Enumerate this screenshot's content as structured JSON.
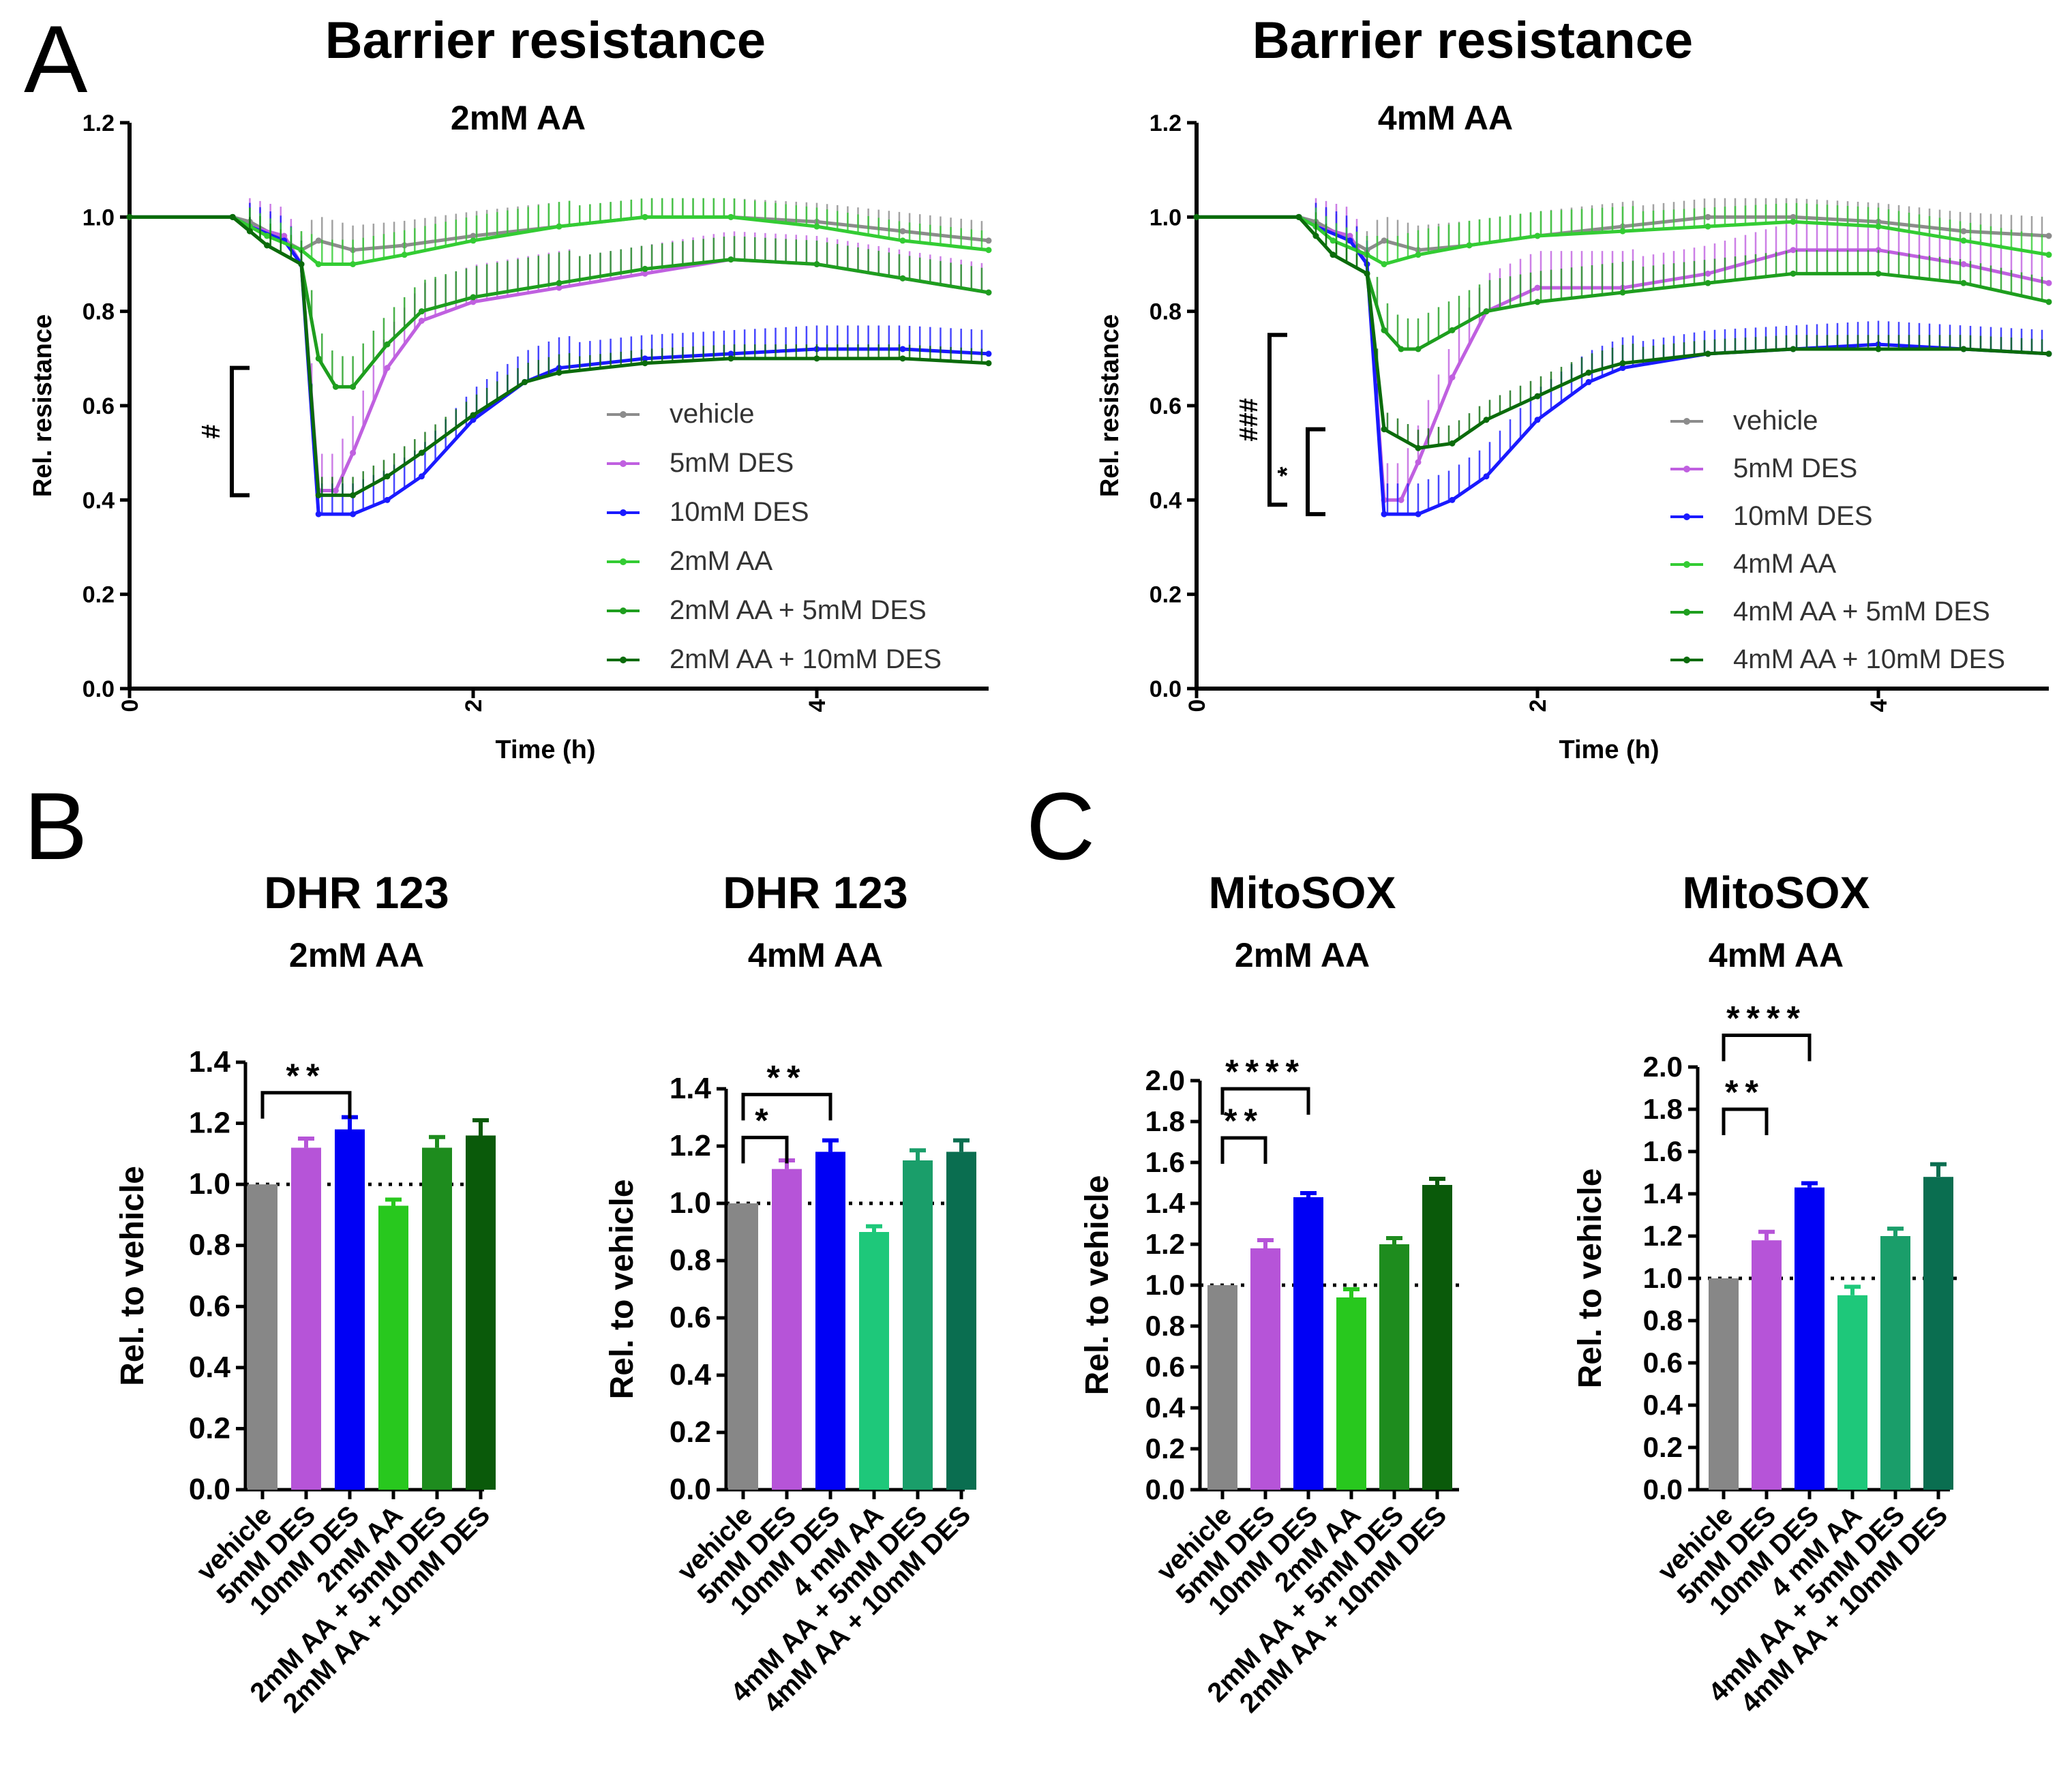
{
  "panel_letters": [
    "A",
    "B",
    "C"
  ],
  "chart_data": [
    {
      "type": "line",
      "panel": "A",
      "title": "Barrier resistance",
      "subtitle": "2mM AA",
      "xlabel": "Time (h)",
      "ylabel": "Rel. resistance",
      "xlim": [
        0,
        5
      ],
      "ylim": [
        0,
        1.2
      ],
      "xticks": [
        "0",
        "2",
        "4"
      ],
      "yticks": [
        "0.0",
        "0.2",
        "0.4",
        "0.6",
        "0.8",
        "1.0",
        "1.2"
      ],
      "legend_position": "right-center",
      "series": [
        {
          "name": "vehicle",
          "color": "#8c8c8c",
          "err": 0.04,
          "x": [
            0,
            0.6,
            0.7,
            0.9,
            1.0,
            1.1,
            1.3,
            1.6,
            2.0,
            2.5,
            3.0,
            3.5,
            4.0,
            4.5,
            5.0
          ],
          "y": [
            1.0,
            1.0,
            0.99,
            0.95,
            0.93,
            0.95,
            0.93,
            0.94,
            0.96,
            0.98,
            1.0,
            1.0,
            0.99,
            0.97,
            0.95
          ]
        },
        {
          "name": "5mM DES",
          "color": "#c060e0",
          "err": 0.06,
          "x": [
            0,
            0.6,
            0.7,
            0.9,
            1.0,
            1.1,
            1.2,
            1.3,
            1.5,
            1.7,
            2.0,
            2.5,
            3.0,
            3.5,
            4.0,
            4.5,
            5.0
          ],
          "y": [
            1.0,
            1.0,
            0.98,
            0.96,
            0.9,
            0.42,
            0.42,
            0.5,
            0.68,
            0.78,
            0.82,
            0.85,
            0.88,
            0.91,
            0.9,
            0.87,
            0.84
          ]
        },
        {
          "name": "10mM DES",
          "color": "#1a1aff",
          "err": 0.05,
          "x": [
            0,
            0.6,
            0.7,
            0.9,
            1.0,
            1.1,
            1.3,
            1.5,
            1.7,
            2.0,
            2.3,
            2.5,
            3.0,
            3.5,
            4.0,
            4.5,
            5.0
          ],
          "y": [
            1.0,
            1.0,
            0.98,
            0.95,
            0.9,
            0.37,
            0.37,
            0.4,
            0.45,
            0.57,
            0.65,
            0.68,
            0.7,
            0.71,
            0.72,
            0.72,
            0.71
          ]
        },
        {
          "name": "2mM AA",
          "color": "#33cc33",
          "err": 0.04,
          "x": [
            0,
            0.6,
            0.7,
            0.8,
            1.0,
            1.1,
            1.3,
            1.6,
            2.0,
            2.5,
            3.0,
            3.5,
            4.0,
            4.5,
            5.0
          ],
          "y": [
            1.0,
            1.0,
            0.98,
            0.96,
            0.93,
            0.9,
            0.9,
            0.92,
            0.95,
            0.98,
            1.0,
            1.0,
            0.98,
            0.95,
            0.93
          ]
        },
        {
          "name": "2mM AA + 5mM DES",
          "color": "#1e9e1e",
          "err": 0.05,
          "x": [
            0,
            0.6,
            0.7,
            0.8,
            1.0,
            1.1,
            1.2,
            1.3,
            1.5,
            1.7,
            2.0,
            2.5,
            3.0,
            3.5,
            4.0,
            4.5,
            5.0
          ],
          "y": [
            1.0,
            1.0,
            0.97,
            0.94,
            0.9,
            0.7,
            0.64,
            0.64,
            0.73,
            0.8,
            0.83,
            0.86,
            0.89,
            0.91,
            0.9,
            0.87,
            0.84
          ]
        },
        {
          "name": "2mM AA + 10mM DES",
          "color": "#0b6b0b",
          "err": 0.03,
          "x": [
            0,
            0.6,
            0.7,
            0.8,
            1.0,
            1.1,
            1.3,
            1.5,
            1.7,
            2.0,
            2.3,
            2.5,
            3.0,
            3.5,
            4.0,
            4.5,
            5.0
          ],
          "y": [
            1.0,
            1.0,
            0.97,
            0.94,
            0.9,
            0.41,
            0.41,
            0.45,
            0.5,
            0.58,
            0.65,
            0.67,
            0.69,
            0.7,
            0.7,
            0.7,
            0.69
          ]
        }
      ],
      "annotations": [
        {
          "label": "#",
          "y_from": 0.41,
          "y_to": 0.68
        }
      ]
    },
    {
      "type": "line",
      "panel": "A",
      "title": "Barrier resistance",
      "subtitle": "4mM AA",
      "xlabel": "Time (h)",
      "ylabel": "Rel. resistance",
      "xlim": [
        0,
        5
      ],
      "ylim": [
        0,
        1.2
      ],
      "xticks": [
        "0",
        "2",
        "4"
      ],
      "yticks": [
        "0.0",
        "0.2",
        "0.4",
        "0.6",
        "0.8",
        "1.0",
        "1.2"
      ],
      "legend_position": "bottom-right",
      "series": [
        {
          "name": "vehicle",
          "color": "#8c8c8c",
          "err": 0.04,
          "x": [
            0,
            0.6,
            0.7,
            0.9,
            1.0,
            1.1,
            1.3,
            1.6,
            2.0,
            2.5,
            3.0,
            3.5,
            4.0,
            4.5,
            5.0
          ],
          "y": [
            1.0,
            1.0,
            0.99,
            0.95,
            0.93,
            0.95,
            0.93,
            0.94,
            0.96,
            0.98,
            1.0,
            1.0,
            0.99,
            0.97,
            0.96
          ]
        },
        {
          "name": "5mM DES",
          "color": "#c060e0",
          "err": 0.06,
          "x": [
            0,
            0.6,
            0.7,
            0.9,
            1.0,
            1.1,
            1.2,
            1.3,
            1.5,
            1.7,
            2.0,
            2.5,
            3.0,
            3.5,
            4.0,
            4.5,
            5.0
          ],
          "y": [
            1.0,
            1.0,
            0.98,
            0.96,
            0.9,
            0.4,
            0.4,
            0.48,
            0.66,
            0.8,
            0.85,
            0.85,
            0.88,
            0.93,
            0.93,
            0.9,
            0.86
          ]
        },
        {
          "name": "10mM DES",
          "color": "#1a1aff",
          "err": 0.05,
          "x": [
            0,
            0.6,
            0.7,
            0.9,
            1.0,
            1.1,
            1.3,
            1.5,
            1.7,
            2.0,
            2.3,
            2.5,
            3.0,
            3.5,
            4.0,
            4.5,
            5.0
          ],
          "y": [
            1.0,
            1.0,
            0.98,
            0.95,
            0.9,
            0.37,
            0.37,
            0.4,
            0.45,
            0.57,
            0.65,
            0.68,
            0.71,
            0.72,
            0.73,
            0.72,
            0.71
          ]
        },
        {
          "name": "4mM AA",
          "color": "#33cc33",
          "err": 0.04,
          "x": [
            0,
            0.6,
            0.7,
            0.8,
            1.0,
            1.1,
            1.3,
            1.6,
            2.0,
            2.5,
            3.0,
            3.5,
            4.0,
            4.5,
            5.0
          ],
          "y": [
            1.0,
            1.0,
            0.98,
            0.95,
            0.92,
            0.9,
            0.92,
            0.94,
            0.96,
            0.97,
            0.98,
            0.99,
            0.98,
            0.95,
            0.92
          ]
        },
        {
          "name": "4mM AA + 5mM DES",
          "color": "#1e9e1e",
          "err": 0.05,
          "x": [
            0,
            0.6,
            0.7,
            0.8,
            1.0,
            1.1,
            1.2,
            1.3,
            1.5,
            1.7,
            2.0,
            2.5,
            3.0,
            3.5,
            4.0,
            4.5,
            5.0
          ],
          "y": [
            1.0,
            1.0,
            0.96,
            0.92,
            0.88,
            0.76,
            0.72,
            0.72,
            0.76,
            0.8,
            0.82,
            0.84,
            0.86,
            0.88,
            0.88,
            0.86,
            0.82
          ]
        },
        {
          "name": "4mM AA + 10mM DES",
          "color": "#0b6b0b",
          "err": 0.03,
          "x": [
            0,
            0.6,
            0.7,
            0.8,
            1.0,
            1.1,
            1.3,
            1.5,
            1.7,
            2.0,
            2.3,
            2.5,
            3.0,
            3.5,
            4.0,
            4.5,
            5.0
          ],
          "y": [
            1.0,
            1.0,
            0.96,
            0.92,
            0.88,
            0.55,
            0.51,
            0.52,
            0.57,
            0.62,
            0.67,
            0.69,
            0.71,
            0.72,
            0.72,
            0.72,
            0.71
          ]
        }
      ],
      "annotations": [
        {
          "label": "###",
          "y_from": 0.39,
          "y_to": 0.75
        },
        {
          "label": "*",
          "y_from": 0.37,
          "y_to": 0.55
        }
      ]
    },
    {
      "type": "bar",
      "panel": "B",
      "title": "DHR 123",
      "subtitle": "2mM AA",
      "ylabel": "Rel. to vehicle",
      "ylim": [
        0,
        1.4
      ],
      "yticks": [
        "0.0",
        "0.2",
        "0.4",
        "0.6",
        "0.8",
        "1.0",
        "1.2",
        "1.4"
      ],
      "reference_line": 1.0,
      "categories": [
        "vehicle",
        "5mM DES",
        "10mM DES",
        "2mM AA",
        "2mM AA + 5mM DES",
        "2mM AA + 10mM DES"
      ],
      "values": [
        1.0,
        1.12,
        1.18,
        0.93,
        1.12,
        1.16
      ],
      "errors": [
        0.0,
        0.03,
        0.04,
        0.02,
        0.035,
        0.05
      ],
      "colors": [
        "#878787",
        "#b654d8",
        "#0000f5",
        "#28c81e",
        "#1e8c1e",
        "#0a5a0a"
      ],
      "significance": [
        {
          "from": 0,
          "to": 2,
          "label": "**",
          "y": 1.3
        }
      ]
    },
    {
      "type": "bar",
      "panel": "B",
      "title": "DHR 123",
      "subtitle": "4mM AA",
      "ylabel": "Rel. to vehicle",
      "ylim": [
        0,
        1.4
      ],
      "yticks": [
        "0.0",
        "0.2",
        "0.4",
        "0.6",
        "0.8",
        "1.0",
        "1.2",
        "1.4"
      ],
      "reference_line": 1.0,
      "categories": [
        "vehicle",
        "5mM DES",
        "10mM DES",
        "4 mM AA",
        "4mM AA + 5mM DES",
        "4mM AA + 10mM DES"
      ],
      "values": [
        1.0,
        1.12,
        1.18,
        0.9,
        1.15,
        1.18
      ],
      "errors": [
        0.0,
        0.03,
        0.04,
        0.02,
        0.035,
        0.04
      ],
      "colors": [
        "#878787",
        "#b654d8",
        "#0000f5",
        "#1ec87a",
        "#1a9e6a",
        "#0a6e50"
      ],
      "significance": [
        {
          "from": 0,
          "to": 2,
          "label": "**",
          "y": 1.38
        },
        {
          "from": 0,
          "to": 1,
          "label": "*",
          "y": 1.23
        }
      ]
    },
    {
      "type": "bar",
      "panel": "C",
      "title": "MitoSOX",
      "subtitle": "2mM AA",
      "ylabel": "Rel. to vehicle",
      "ylim": [
        0,
        2.0
      ],
      "yticks": [
        "0.0",
        "0.2",
        "0.4",
        "0.6",
        "0.8",
        "1.0",
        "1.2",
        "1.4",
        "1.6",
        "1.8",
        "2.0"
      ],
      "reference_line": 1.0,
      "categories": [
        "vehicle",
        "5mM DES",
        "10mM DES",
        "2mM AA",
        "2mM AA + 5mM DES",
        "2mM AA + 10mM DES"
      ],
      "values": [
        1.0,
        1.18,
        1.43,
        0.94,
        1.2,
        1.49
      ],
      "errors": [
        0.0,
        0.04,
        0.02,
        0.04,
        0.03,
        0.03
      ],
      "colors": [
        "#878787",
        "#b654d8",
        "#0000f5",
        "#28c81e",
        "#1e8c1e",
        "#0a5a0a"
      ],
      "significance": [
        {
          "from": 0,
          "to": 2,
          "label": "****",
          "y": 1.96
        },
        {
          "from": 0,
          "to": 1,
          "label": "**",
          "y": 1.72
        }
      ]
    },
    {
      "type": "bar",
      "panel": "C",
      "title": "MitoSOX",
      "subtitle": "4mM AA",
      "ylabel": "Rel. to vehicle",
      "ylim": [
        0,
        2.0
      ],
      "yticks": [
        "0.0",
        "0.2",
        "0.4",
        "0.6",
        "0.8",
        "1.0",
        "1.2",
        "1.4",
        "1.6",
        "1.8",
        "2.0"
      ],
      "reference_line": 1.0,
      "categories": [
        "vehicle",
        "5mM DES",
        "10mM DES",
        "4 mM AA",
        "4mM AA + 5mM DES",
        "4mM AA + 10mM DES"
      ],
      "values": [
        1.0,
        1.18,
        1.43,
        0.92,
        1.2,
        1.48
      ],
      "errors": [
        0.0,
        0.04,
        0.02,
        0.04,
        0.035,
        0.06
      ],
      "colors": [
        "#878787",
        "#b654d8",
        "#0000f5",
        "#1ec87a",
        "#1a9e6a",
        "#0a6e50"
      ],
      "significance": [
        {
          "from": 0,
          "to": 2,
          "label": "****",
          "y": 2.15
        },
        {
          "from": 0,
          "to": 1,
          "label": "**",
          "y": 1.8
        }
      ]
    }
  ]
}
